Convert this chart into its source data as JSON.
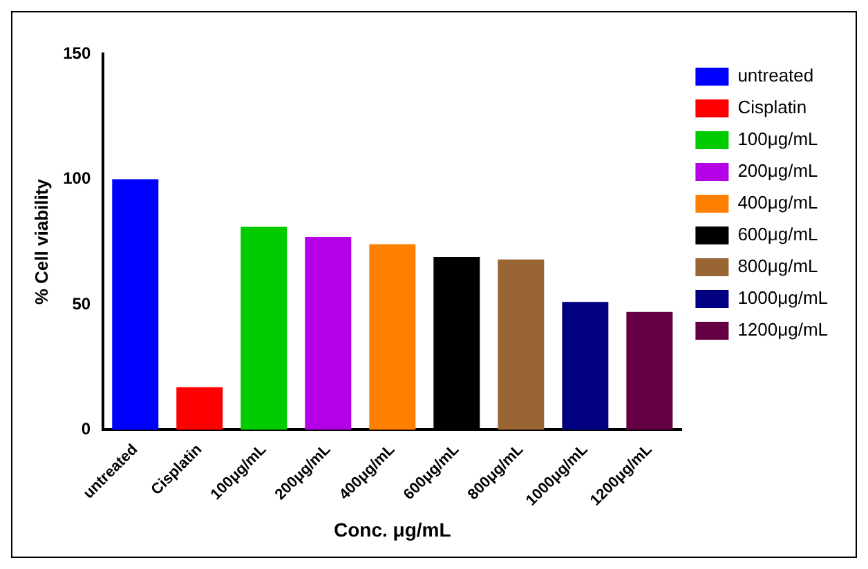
{
  "chart_data": {
    "type": "bar",
    "xlabel": "Conc. μg/mL",
    "ylabel": "% Cell viability",
    "categories": [
      "untreated",
      "Cisplatin",
      "100μg/mL",
      "200μg/mL",
      "400μg/mL",
      "600μg/mL",
      "800μg/mL",
      "1000μg/mL",
      "1200μg/mL"
    ],
    "series": [
      {
        "name": "untreated",
        "color": "#0000ff",
        "values": [
          100,
          null,
          null,
          null,
          null,
          null,
          null,
          null,
          null
        ]
      },
      {
        "name": "Cisplatin",
        "color": "#ff0000",
        "values": [
          null,
          17,
          null,
          null,
          null,
          null,
          null,
          null,
          null
        ]
      },
      {
        "name": "100μg/mL",
        "color": "#00cc00",
        "values": [
          null,
          null,
          81,
          null,
          null,
          null,
          null,
          null,
          null
        ]
      },
      {
        "name": "200μg/mL",
        "color": "#b300e6",
        "values": [
          null,
          null,
          null,
          77,
          null,
          null,
          null,
          null,
          null
        ]
      },
      {
        "name": "400μg/mL",
        "color": "#ff8000",
        "values": [
          null,
          null,
          null,
          null,
          74,
          null,
          null,
          null,
          null
        ]
      },
      {
        "name": "600μg/mL",
        "color": "#000000",
        "values": [
          null,
          null,
          null,
          null,
          null,
          69,
          null,
          null,
          null
        ]
      },
      {
        "name": "800μg/mL",
        "color": "#996633",
        "values": [
          null,
          null,
          null,
          null,
          null,
          null,
          68,
          null,
          null
        ]
      },
      {
        "name": "1000μg/mL",
        "color": "#000080",
        "values": [
          null,
          null,
          null,
          null,
          null,
          null,
          null,
          51,
          null
        ]
      },
      {
        "name": "1200μg/mL",
        "color": "#660044",
        "values": [
          null,
          null,
          null,
          null,
          null,
          null,
          null,
          null,
          47
        ]
      }
    ],
    "ylim": [
      0,
      150
    ],
    "yticks": [
      0,
      50,
      100,
      150
    ],
    "grid": false,
    "legend": "right"
  }
}
